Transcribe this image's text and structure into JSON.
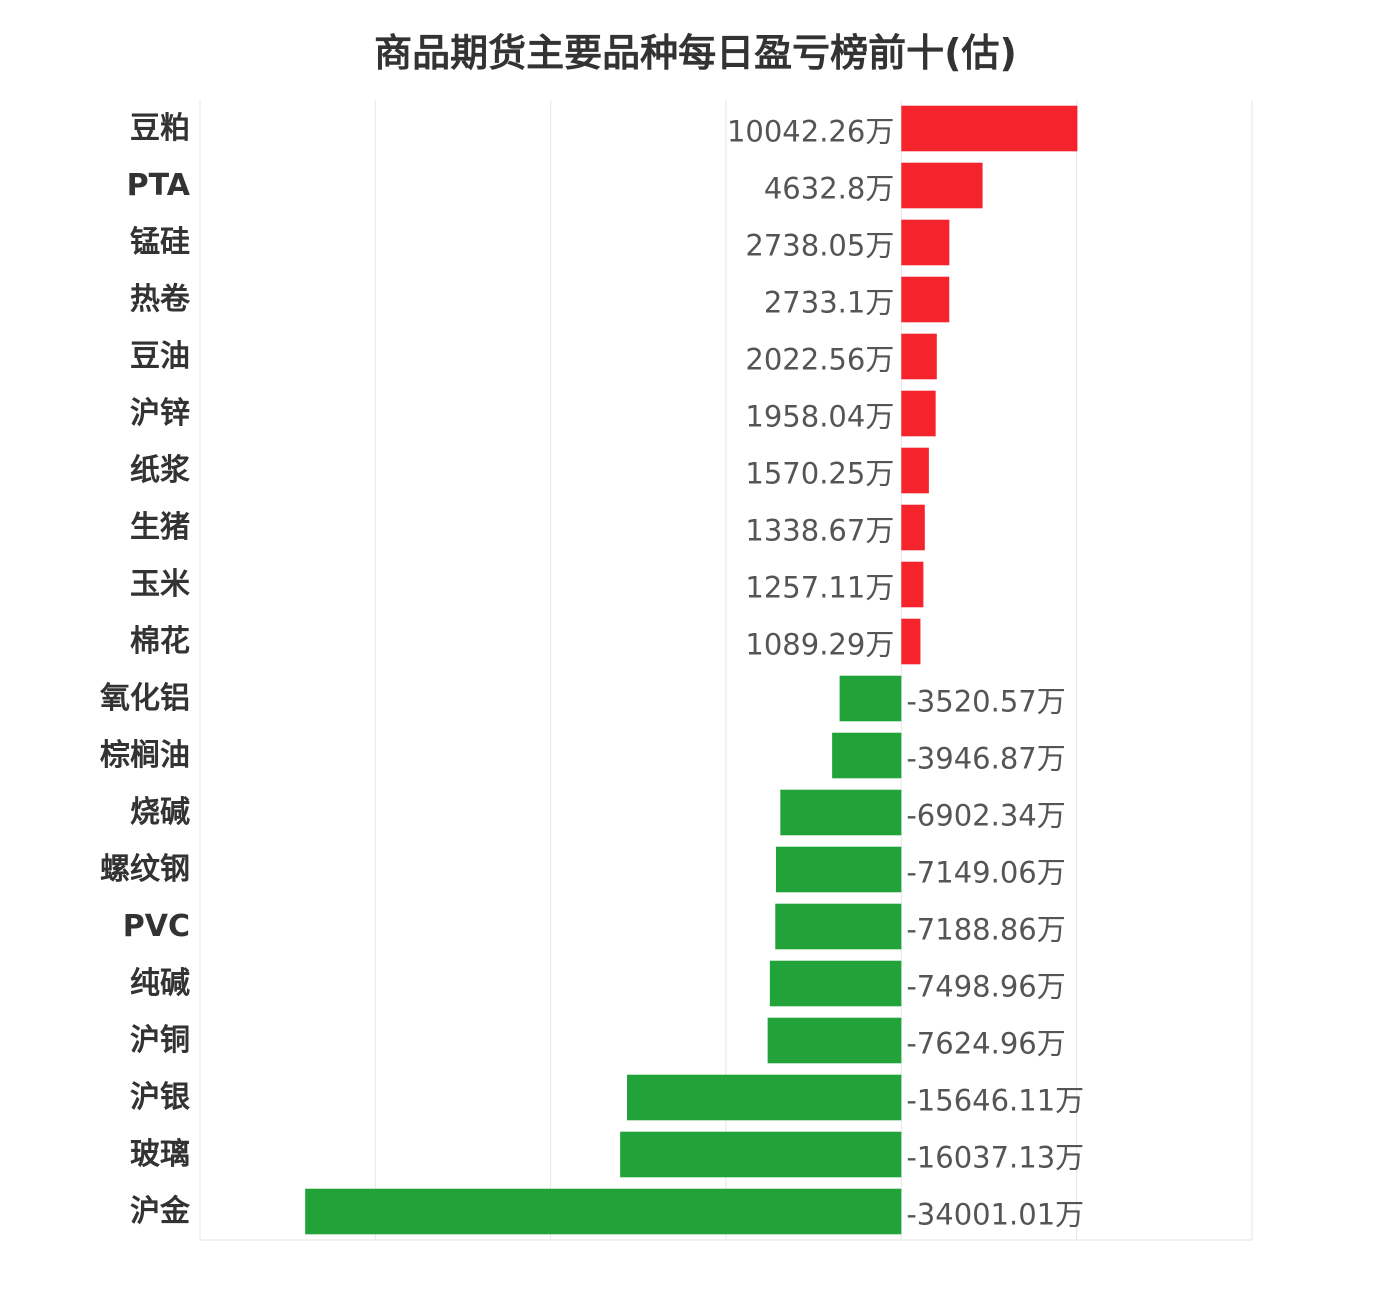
{
  "chart_data": {
    "type": "bar",
    "orientation": "horizontal",
    "title": "商品期货主要品种每日盈亏榜前十(估)",
    "unit": "万",
    "categories": [
      "豆粕",
      "PTA",
      "锰硅",
      "热卷",
      "豆油",
      "沪锌",
      "纸浆",
      "生猪",
      "玉米",
      "棉花",
      "氧化铝",
      "棕榈油",
      "烧碱",
      "螺纹钢",
      "PVC",
      "纯碱",
      "沪铜",
      "沪银",
      "玻璃",
      "沪金"
    ],
    "values": [
      10042.26,
      4632.8,
      2738.05,
      2733.1,
      2022.56,
      1958.04,
      1570.25,
      1338.67,
      1257.11,
      1089.29,
      -3520.57,
      -3946.87,
      -6902.34,
      -7149.06,
      -7188.86,
      -7498.96,
      -7624.96,
      -15646.11,
      -16037.13,
      -34001.01
    ],
    "value_labels": [
      "10042.26万",
      "4632.8万",
      "2738.05万",
      "2733.1万",
      "2022.56万",
      "1958.04万",
      "1570.25万",
      "1338.67万",
      "1257.11万",
      "1089.29万",
      "-3520.57万",
      "-3946.87万",
      "-6902.34万",
      "-7149.06万",
      "-7188.86万",
      "-7498.96万",
      "-7624.96万",
      "-15646.11万",
      "-16037.13万",
      "-34001.01万"
    ],
    "xlim": [
      -40000,
      20000
    ],
    "grid": true,
    "legend": "none",
    "colors": {
      "positive": "#f5232b",
      "negative": "#21a33a",
      "grid": "#e6e6e6"
    }
  }
}
